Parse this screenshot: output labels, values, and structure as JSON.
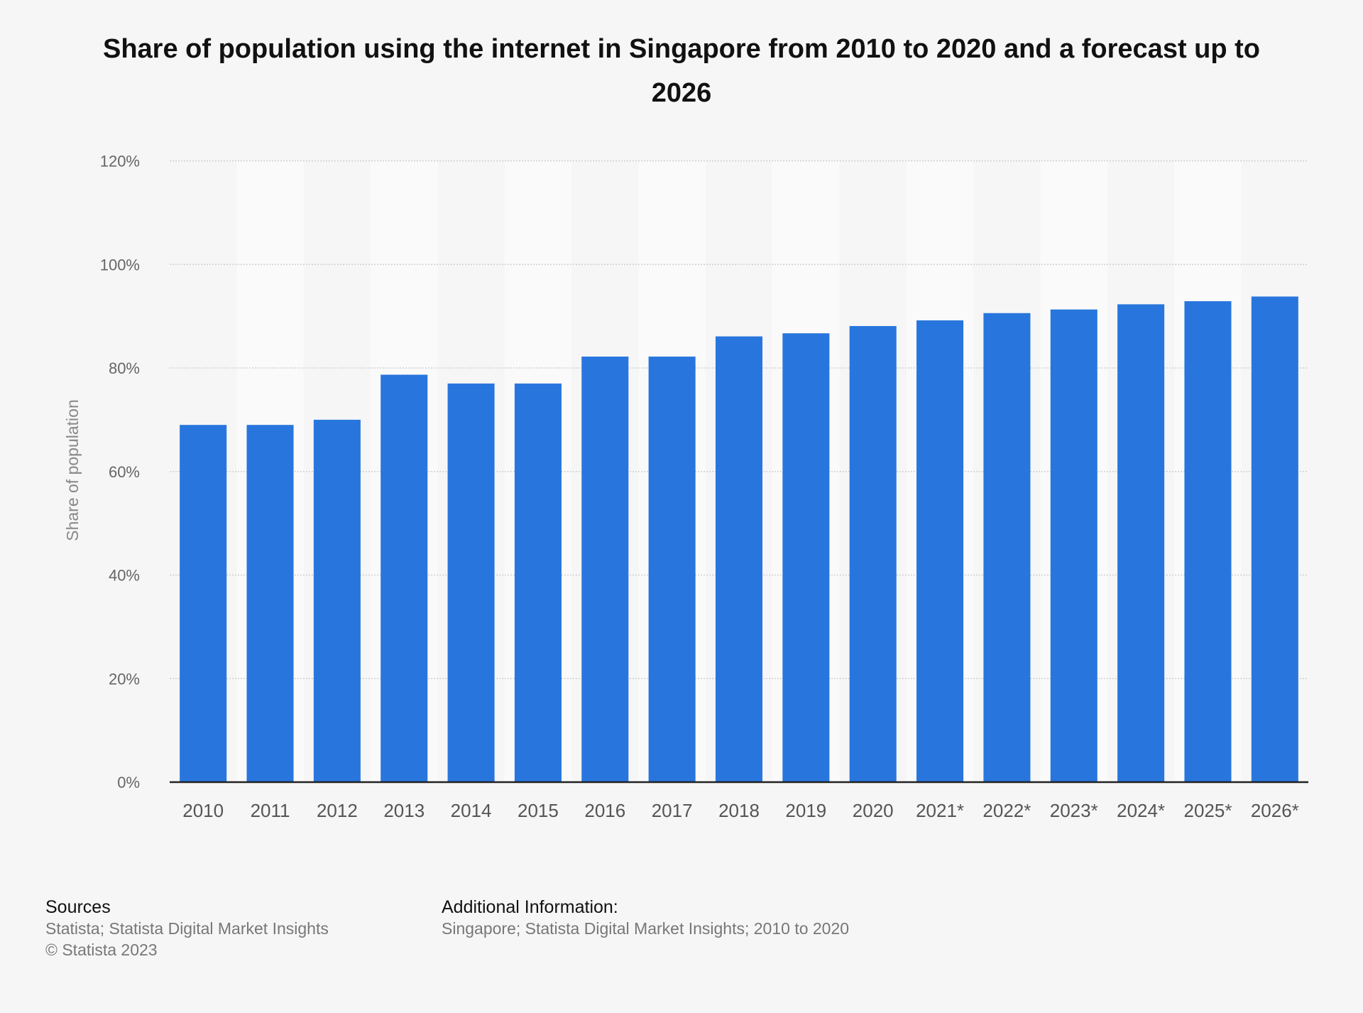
{
  "chart_data": {
    "type": "bar",
    "title": "Share of population using the internet in Singapore from 2010 to 2020 and a forecast up to 2026",
    "xlabel": "",
    "ylabel": "Share of population",
    "ylim": [
      0,
      120
    ],
    "yticks": [
      0,
      20,
      40,
      60,
      80,
      100,
      120
    ],
    "ytick_labels": [
      "0%",
      "20%",
      "40%",
      "60%",
      "80%",
      "100%",
      "120%"
    ],
    "grid": true,
    "categories": [
      "2010",
      "2011",
      "2012",
      "2013",
      "2014",
      "2015",
      "2016",
      "2017",
      "2018",
      "2019",
      "2020",
      "2021*",
      "2022*",
      "2023*",
      "2024*",
      "2025*",
      "2026*"
    ],
    "values": [
      69,
      69,
      70,
      78.7,
      77,
      77,
      82.2,
      82.2,
      86.1,
      86.7,
      88.1,
      89.2,
      90.6,
      91.3,
      92.3,
      92.9,
      93.8
    ],
    "bar_color": "#2876dd"
  },
  "footer": {
    "sources_heading": "Sources",
    "sources_text": "Statista; Statista Digital Market Insights",
    "copyright": "© Statista 2023",
    "additional_heading": "Additional Information:",
    "additional_text": "Singapore; Statista Digital Market Insights; 2010 to 2020"
  }
}
